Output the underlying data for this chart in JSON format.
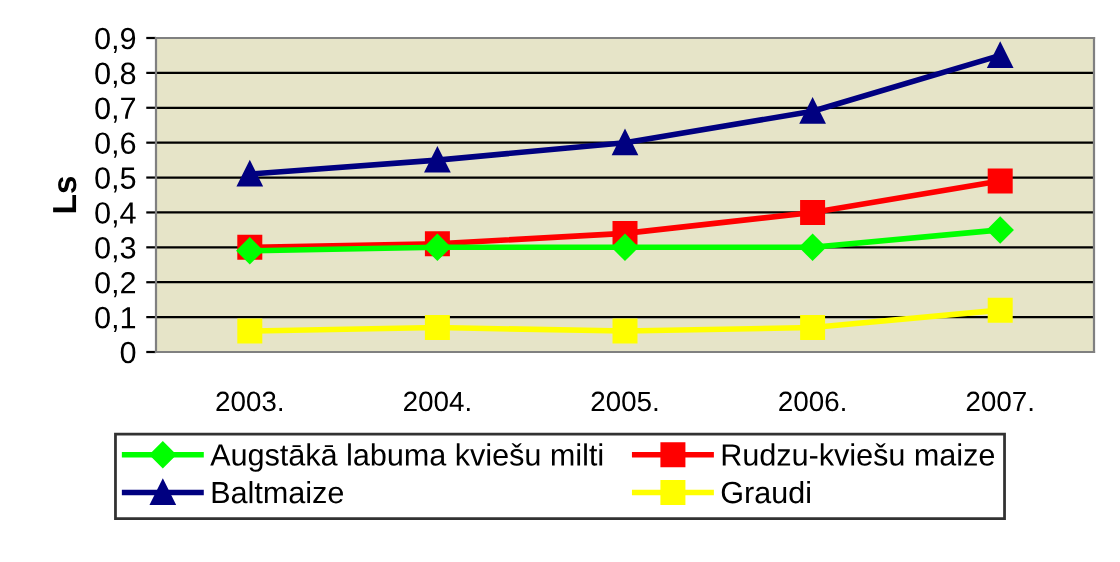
{
  "chart_data": {
    "type": "line",
    "ylabel": "Ls",
    "categories": [
      "2003.",
      "2004.",
      "2005.",
      "2006.",
      "2007."
    ],
    "series": [
      {
        "name": "Augstākā labuma kviešu milti",
        "color": "#00ff00",
        "marker": "diamond",
        "values": [
          0.29,
          0.3,
          0.3,
          0.3,
          0.35
        ]
      },
      {
        "name": "Rudzu-kviešu maize",
        "color": "#ff0000",
        "marker": "square",
        "values": [
          0.3,
          0.31,
          0.34,
          0.4,
          0.49
        ]
      },
      {
        "name": "Baltmaize",
        "color": "#000080",
        "marker": "triangle",
        "values": [
          0.51,
          0.55,
          0.6,
          0.69,
          0.85
        ]
      },
      {
        "name": "Graudi",
        "color": "#ffff00",
        "marker": "square",
        "values": [
          0.06,
          0.07,
          0.06,
          0.07,
          0.12
        ]
      }
    ],
    "ylim": [
      0,
      0.9
    ],
    "yticks": [
      0,
      {
        "value": 0.1,
        "label": "0,1"
      },
      {
        "value": 0.2,
        "label": "0,2"
      },
      {
        "value": 0.3,
        "label": "0,3"
      },
      {
        "value": 0.4,
        "label": "0,4"
      },
      {
        "value": 0.5,
        "label": "0,5"
      },
      {
        "value": 0.6,
        "label": "0,6"
      },
      {
        "value": 0.7,
        "label": "0,7"
      },
      {
        "value": 0.8,
        "label": "0,8"
      },
      {
        "value": 0.9,
        "label": "0,9"
      }
    ],
    "grid": "y",
    "legend": "bottom"
  }
}
